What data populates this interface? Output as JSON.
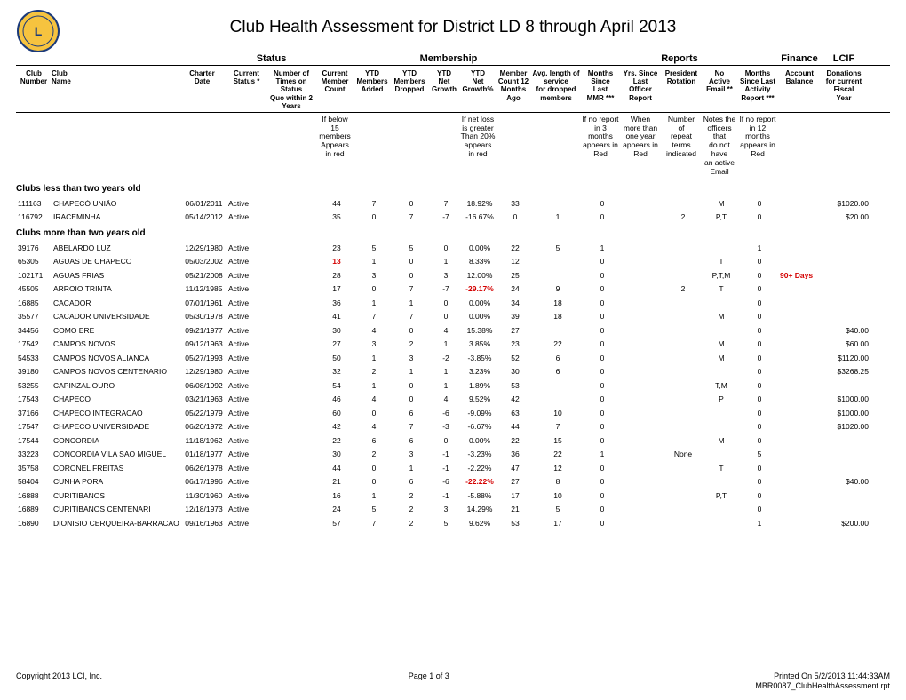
{
  "title": "Club Health Assessment for District LD 8 through April 2013",
  "top_headers": {
    "status": "Status",
    "membership": "Membership",
    "reports": "Reports",
    "finance": "Finance",
    "lcif": "LCIF"
  },
  "col_headers": {
    "clubnum": "Club\nNumber",
    "clubname": "Club\nName",
    "charter": "Charter\nDate",
    "status": "Current\nStatus *",
    "quo": "Number of\nTimes on Status\nQuo within 2\nYears",
    "memcount": "Current\nMember\nCount",
    "added": "YTD\nMembers\nAdded",
    "dropped": "YTD\nMembers\nDropped",
    "netg": "YTD\nNet\nGrowth",
    "growthpct": "YTD\nNet\nGrowth%",
    "count12": "Member\nCount 12\nMonths\nAgo",
    "avglen": "Avg. length of\nservice\nfor dropped\nmembers",
    "mmr": "Months\nSince\nLast\nMMR ***",
    "officer": "Yrs. Since\nLast\nOfficer\nReport",
    "president": "President\nRotation",
    "noemail": "No\nActive\nEmail **",
    "activity": "Months\nSince Last\nActivity\nReport ***",
    "acct": "Account\nBalance",
    "lcif": "Donations\nfor current\nFiscal\nYear"
  },
  "notes": {
    "memcount": "If below\n15\nmembers\nAppears\nin red",
    "growthpct": "If net loss\nis greater\nThan 20%\nappears\nin red",
    "mmr": "If no report\nin 3\nmonths\nappears in\nRed",
    "officer": "When\nmore than\none year\nappears in\nRed",
    "president": "Number\nof\nrepeat\nterms\nindicated",
    "noemail": "Notes the\nofficers that\ndo not have\nan active\nEmail",
    "activity": "If no report\nin 12\nmonths\nappears in\nRed"
  },
  "sections": [
    {
      "heading": "Clubs less than two years old",
      "rows": [
        {
          "num": "111163",
          "name": "CHAPECÓ UNIÃO",
          "charter": "06/01/2011",
          "status": "Active",
          "quo": "",
          "mc": "44",
          "add": "7",
          "drop": "0",
          "net": "7",
          "pct": "18.92%",
          "c12": "33",
          "avg": "",
          "mmr": "0",
          "off": "",
          "pres": "",
          "email": "M",
          "act": "0",
          "acct": "",
          "lcif": "$1020.00"
        },
        {
          "num": "116792",
          "name": "IRACEMINHA",
          "charter": "05/14/2012",
          "status": "Active",
          "quo": "",
          "mc": "35",
          "add": "0",
          "drop": "7",
          "net": "-7",
          "pct": "-16.67%",
          "c12": "0",
          "avg": "1",
          "mmr": "0",
          "off": "",
          "pres": "2",
          "email": "P,T",
          "act": "0",
          "acct": "",
          "lcif": "$20.00"
        }
      ]
    },
    {
      "heading": "Clubs more than two years old",
      "rows": [
        {
          "num": "39176",
          "name": "ABELARDO LUZ",
          "charter": "12/29/1980",
          "status": "Active",
          "quo": "",
          "mc": "23",
          "add": "5",
          "drop": "5",
          "net": "0",
          "pct": "0.00%",
          "c12": "22",
          "avg": "5",
          "mmr": "1",
          "off": "",
          "pres": "",
          "email": "",
          "act": "1",
          "acct": "",
          "lcif": ""
        },
        {
          "num": "65305",
          "name": "AGUAS DE CHAPECO",
          "charter": "05/03/2002",
          "status": "Active",
          "quo": "",
          "mc": "13",
          "mc_red": true,
          "add": "1",
          "drop": "0",
          "net": "1",
          "pct": "8.33%",
          "c12": "12",
          "avg": "",
          "mmr": "0",
          "off": "",
          "pres": "",
          "email": "T",
          "act": "0",
          "acct": "",
          "lcif": ""
        },
        {
          "num": "102171",
          "name": "AGUAS FRIAS",
          "charter": "05/21/2008",
          "status": "Active",
          "quo": "",
          "mc": "28",
          "add": "3",
          "drop": "0",
          "net": "3",
          "pct": "12.00%",
          "c12": "25",
          "avg": "",
          "mmr": "0",
          "off": "",
          "pres": "",
          "email": "P,T,M",
          "act": "0",
          "acct": "90+ Days",
          "acct_red": true,
          "lcif": ""
        },
        {
          "num": "45505",
          "name": "ARROIO TRINTA",
          "charter": "11/12/1985",
          "status": "Active",
          "quo": "",
          "mc": "17",
          "add": "0",
          "drop": "7",
          "net": "-7",
          "pct": "-29.17%",
          "pct_red": true,
          "c12": "24",
          "avg": "9",
          "mmr": "0",
          "off": "",
          "pres": "2",
          "email": "T",
          "act": "0",
          "acct": "",
          "lcif": ""
        },
        {
          "num": "16885",
          "name": "CACADOR",
          "charter": "07/01/1961",
          "status": "Active",
          "quo": "",
          "mc": "36",
          "add": "1",
          "drop": "1",
          "net": "0",
          "pct": "0.00%",
          "c12": "34",
          "avg": "18",
          "mmr": "0",
          "off": "",
          "pres": "",
          "email": "",
          "act": "0",
          "acct": "",
          "lcif": ""
        },
        {
          "num": "35577",
          "name": "CACADOR UNIVERSIDADE",
          "charter": "05/30/1978",
          "status": "Active",
          "quo": "",
          "mc": "41",
          "add": "7",
          "drop": "7",
          "net": "0",
          "pct": "0.00%",
          "c12": "39",
          "avg": "18",
          "mmr": "0",
          "off": "",
          "pres": "",
          "email": "M",
          "act": "0",
          "acct": "",
          "lcif": ""
        },
        {
          "num": "34456",
          "name": "COMO ERE",
          "charter": "09/21/1977",
          "status": "Active",
          "quo": "",
          "mc": "30",
          "add": "4",
          "drop": "0",
          "net": "4",
          "pct": "15.38%",
          "c12": "27",
          "avg": "",
          "mmr": "0",
          "off": "",
          "pres": "",
          "email": "",
          "act": "0",
          "acct": "",
          "lcif": "$40.00"
        },
        {
          "num": "17542",
          "name": "CAMPOS NOVOS",
          "charter": "09/12/1963",
          "status": "Active",
          "quo": "",
          "mc": "27",
          "add": "3",
          "drop": "2",
          "net": "1",
          "pct": "3.85%",
          "c12": "23",
          "avg": "22",
          "mmr": "0",
          "off": "",
          "pres": "",
          "email": "M",
          "act": "0",
          "acct": "",
          "lcif": "$60.00"
        },
        {
          "num": "54533",
          "name": "CAMPOS NOVOS ALIANCA",
          "charter": "05/27/1993",
          "status": "Active",
          "quo": "",
          "mc": "50",
          "add": "1",
          "drop": "3",
          "net": "-2",
          "pct": "-3.85%",
          "c12": "52",
          "avg": "6",
          "mmr": "0",
          "off": "",
          "pres": "",
          "email": "M",
          "act": "0",
          "acct": "",
          "lcif": "$1120.00"
        },
        {
          "num": "39180",
          "name": "CAMPOS NOVOS CENTENARIO",
          "charter": "12/29/1980",
          "status": "Active",
          "quo": "",
          "mc": "32",
          "add": "2",
          "drop": "1",
          "net": "1",
          "pct": "3.23%",
          "c12": "30",
          "avg": "6",
          "mmr": "0",
          "off": "",
          "pres": "",
          "email": "",
          "act": "0",
          "acct": "",
          "lcif": "$3268.25"
        },
        {
          "num": "53255",
          "name": "CAPINZAL OURO",
          "charter": "06/08/1992",
          "status": "Active",
          "quo": "",
          "mc": "54",
          "add": "1",
          "drop": "0",
          "net": "1",
          "pct": "1.89%",
          "c12": "53",
          "avg": "",
          "mmr": "0",
          "off": "",
          "pres": "",
          "email": "T,M",
          "act": "0",
          "acct": "",
          "lcif": ""
        },
        {
          "num": "17543",
          "name": "CHAPECO",
          "charter": "03/21/1963",
          "status": "Active",
          "quo": "",
          "mc": "46",
          "add": "4",
          "drop": "0",
          "net": "4",
          "pct": "9.52%",
          "c12": "42",
          "avg": "",
          "mmr": "0",
          "off": "",
          "pres": "",
          "email": "P",
          "act": "0",
          "acct": "",
          "lcif": "$1000.00"
        },
        {
          "num": "37166",
          "name": "CHAPECO INTEGRACAO",
          "charter": "05/22/1979",
          "status": "Active",
          "quo": "",
          "mc": "60",
          "add": "0",
          "drop": "6",
          "net": "-6",
          "pct": "-9.09%",
          "c12": "63",
          "avg": "10",
          "mmr": "0",
          "off": "",
          "pres": "",
          "email": "",
          "act": "0",
          "acct": "",
          "lcif": "$1000.00"
        },
        {
          "num": "17547",
          "name": "CHAPECO UNIVERSIDADE",
          "charter": "06/20/1972",
          "status": "Active",
          "quo": "",
          "mc": "42",
          "add": "4",
          "drop": "7",
          "net": "-3",
          "pct": "-6.67%",
          "c12": "44",
          "avg": "7",
          "mmr": "0",
          "off": "",
          "pres": "",
          "email": "",
          "act": "0",
          "acct": "",
          "lcif": "$1020.00"
        },
        {
          "num": "17544",
          "name": "CONCORDIA",
          "charter": "11/18/1962",
          "status": "Active",
          "quo": "",
          "mc": "22",
          "add": "6",
          "drop": "6",
          "net": "0",
          "pct": "0.00%",
          "c12": "22",
          "avg": "15",
          "mmr": "0",
          "off": "",
          "pres": "",
          "email": "M",
          "act": "0",
          "acct": "",
          "lcif": ""
        },
        {
          "num": "33223",
          "name": "CONCORDIA VILA SAO MIGUEL",
          "charter": "01/18/1977",
          "status": "Active",
          "quo": "",
          "mc": "30",
          "add": "2",
          "drop": "3",
          "net": "-1",
          "pct": "-3.23%",
          "c12": "36",
          "avg": "22",
          "mmr": "1",
          "off": "",
          "pres": "None",
          "email": "",
          "act": "5",
          "acct": "",
          "lcif": ""
        },
        {
          "num": "35758",
          "name": "CORONEL FREITAS",
          "charter": "06/26/1978",
          "status": "Active",
          "quo": "",
          "mc": "44",
          "add": "0",
          "drop": "1",
          "net": "-1",
          "pct": "-2.22%",
          "c12": "47",
          "avg": "12",
          "mmr": "0",
          "off": "",
          "pres": "",
          "email": "T",
          "act": "0",
          "acct": "",
          "lcif": ""
        },
        {
          "num": "58404",
          "name": "CUNHA PORA",
          "charter": "06/17/1996",
          "status": "Active",
          "quo": "",
          "mc": "21",
          "add": "0",
          "drop": "6",
          "net": "-6",
          "pct": "-22.22%",
          "pct_red": true,
          "c12": "27",
          "avg": "8",
          "mmr": "0",
          "off": "",
          "pres": "",
          "email": "",
          "act": "0",
          "acct": "",
          "lcif": "$40.00"
        },
        {
          "num": "16888",
          "name": "CURITIBANOS",
          "charter": "11/30/1960",
          "status": "Active",
          "quo": "",
          "mc": "16",
          "add": "1",
          "drop": "2",
          "net": "-1",
          "pct": "-5.88%",
          "c12": "17",
          "avg": "10",
          "mmr": "0",
          "off": "",
          "pres": "",
          "email": "P,T",
          "act": "0",
          "acct": "",
          "lcif": ""
        },
        {
          "num": "16889",
          "name": "CURITIBANOS CENTENARI",
          "charter": "12/18/1973",
          "status": "Active",
          "quo": "",
          "mc": "24",
          "add": "5",
          "drop": "2",
          "net": "3",
          "pct": "14.29%",
          "c12": "21",
          "avg": "5",
          "mmr": "0",
          "off": "",
          "pres": "",
          "email": "",
          "act": "0",
          "acct": "",
          "lcif": ""
        },
        {
          "num": "16890",
          "name": "DIONISIO CERQUEIRA-BARRACAO",
          "charter": "09/16/1963",
          "status": "Active",
          "quo": "",
          "mc": "57",
          "add": "7",
          "drop": "2",
          "net": "5",
          "pct": "9.62%",
          "c12": "53",
          "avg": "17",
          "mmr": "0",
          "off": "",
          "pres": "",
          "email": "",
          "act": "1",
          "acct": "",
          "lcif": "$200.00"
        }
      ]
    }
  ],
  "footer": {
    "left": "Copyright 2013 LCI, Inc.",
    "center": "Page 1 of 3",
    "right1": "Printed On  5/2/2013  11:44:33AM",
    "right2": "MBR0087_ClubHealthAssessment.rpt"
  }
}
